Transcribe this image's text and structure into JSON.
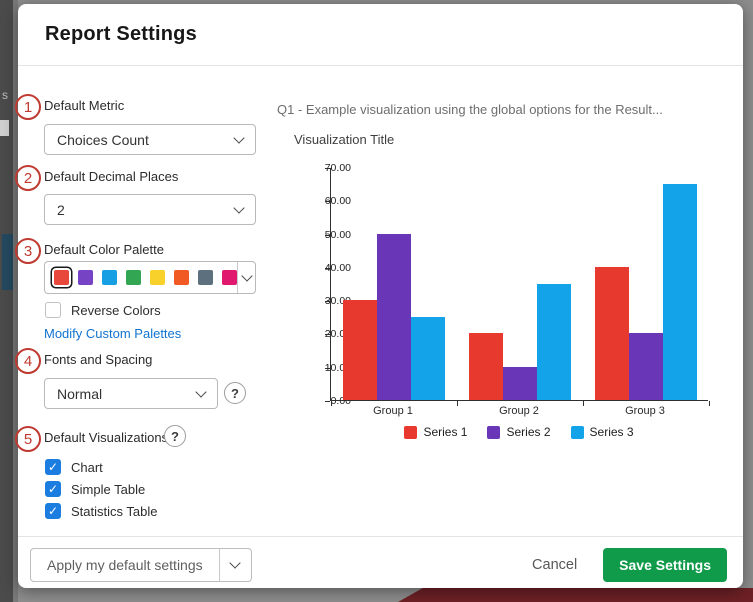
{
  "modal": {
    "title": "Report Settings"
  },
  "annotations": {
    "steps": [
      "1",
      "2",
      "3",
      "4",
      "5"
    ]
  },
  "fields": {
    "default_metric": {
      "label": "Default Metric",
      "value": "Choices Count"
    },
    "default_decimal_places": {
      "label": "Default Decimal Places",
      "value": "2"
    },
    "default_color_palette": {
      "label": "Default Color Palette",
      "swatches": [
        "#e8483b",
        "#7643c4",
        "#16a0e3",
        "#33a653",
        "#f8d22a",
        "#f15a22",
        "#5d707e",
        "#e0196e"
      ],
      "selected_index": 0
    },
    "reverse_colors": {
      "label": "Reverse Colors",
      "checked": false
    },
    "modify_custom_palettes_link": "Modify Custom Palettes",
    "fonts_and_spacing": {
      "label": "Fonts and Spacing",
      "value": "Normal"
    },
    "default_visualizations": {
      "label": "Default Visualizations",
      "options": [
        {
          "label": "Chart",
          "checked": true
        },
        {
          "label": "Simple Table",
          "checked": true
        },
        {
          "label": "Statistics Table",
          "checked": true
        }
      ]
    }
  },
  "preview": {
    "question_label": "Q1 - Example visualization using the global options for the Result...",
    "visualization_title": "Visualization Title"
  },
  "chart_data": {
    "type": "bar",
    "title": "Visualization Title",
    "categories": [
      "Group 1",
      "Group 2",
      "Group 3"
    ],
    "series": [
      {
        "name": "Series 1",
        "color": "#e8392e",
        "values": [
          30,
          20,
          40
        ]
      },
      {
        "name": "Series 2",
        "color": "#6a36b8",
        "values": [
          50,
          10,
          20
        ]
      },
      {
        "name": "Series 3",
        "color": "#12a3e8",
        "values": [
          25,
          35,
          65
        ]
      }
    ],
    "ylim": [
      0,
      70
    ],
    "ytick_labels": [
      "70.00",
      "60.00",
      "50.00",
      "40.00",
      "30.00",
      "20.00",
      "10.00",
      "0.00"
    ],
    "legend_position": "bottom",
    "grid": false
  },
  "footer": {
    "apply_button_label": "Apply my default settings",
    "cancel_label": "Cancel",
    "save_label": "Save Settings"
  },
  "icons": {
    "help": "?"
  },
  "colors": {
    "accent_green": "#0f9b4a",
    "link_blue": "#1374cf",
    "checkbox_blue": "#1b7de0",
    "annotation_red": "#bf3a30"
  }
}
